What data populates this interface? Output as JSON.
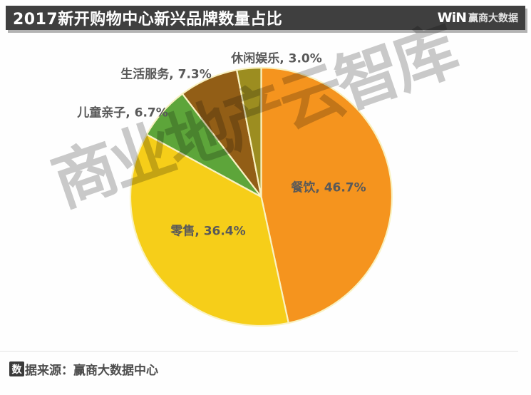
{
  "header": {
    "title": "2017新开购物中心新兴品牌数量占比",
    "logo_win": "WiN",
    "logo_text": "赢商大数据"
  },
  "watermark": {
    "text": "商业地产云智库"
  },
  "footer": {
    "icon_char": "数",
    "text": "据来源：赢商大数据中心"
  },
  "chart_data": {
    "type": "pie",
    "title": "2017新开购物中心新兴品牌数量占比",
    "legend_position": "none",
    "start_angle_deg": 0,
    "direction": "clockwise",
    "label_color": "#595959",
    "slice_border_color": "#f9f2c2",
    "slices": [
      {
        "label": "餐饮",
        "value": 46.7,
        "display": "餐饮, 46.7%",
        "color": "#f5941e",
        "label_placement": "inside"
      },
      {
        "label": "零售",
        "value": 36.4,
        "display": "零售, 36.4%",
        "color": "#f6ce19",
        "label_placement": "inside"
      },
      {
        "label": "儿童亲子",
        "value": 6.7,
        "display": "儿童亲子, 6.7%",
        "color": "#5da53a",
        "label_placement": "outside"
      },
      {
        "label": "生活服务",
        "value": 7.3,
        "display": "生活服务, 7.3%",
        "color": "#925e16",
        "label_placement": "outside"
      },
      {
        "label": "休闲娱乐",
        "value": 3.0,
        "display": "休闲娱乐, 3.0%",
        "color": "#9c8d20",
        "label_placement": "outside"
      }
    ]
  }
}
